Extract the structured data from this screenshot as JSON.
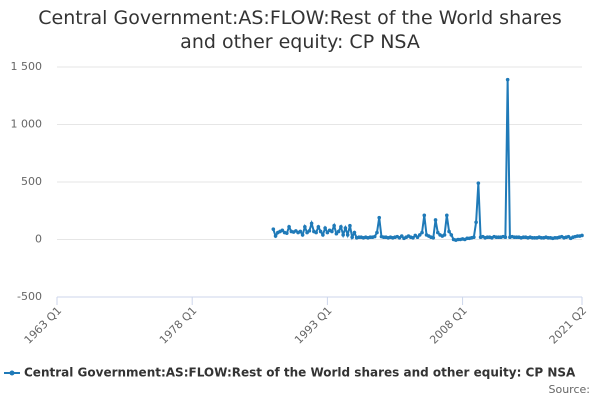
{
  "chart_data": {
    "type": "line",
    "title": "Central Government:AS:FLOW:Rest of the World shares and other equity: CP NSA",
    "source": "Source:",
    "xlim": [
      "1963 Q1",
      "2021 Q2"
    ],
    "xticks": [
      "1963 Q1",
      "1978 Q1",
      "1993 Q1",
      "2008 Q1",
      "2021 Q2"
    ],
    "ylim": [
      -500,
      1500
    ],
    "yticks": [
      -500,
      0,
      500,
      {
        "value": 1000,
        "label": "1 000"
      },
      {
        "value": 1500,
        "label": "1 500"
      }
    ],
    "grid": true,
    "x": [
      "1987 Q1",
      "1987 Q2",
      "1987 Q3",
      "1987 Q4",
      "1988 Q1",
      "1988 Q2",
      "1988 Q3",
      "1988 Q4",
      "1989 Q1",
      "1989 Q2",
      "1989 Q3",
      "1989 Q4",
      "1990 Q1",
      "1990 Q2",
      "1990 Q3",
      "1990 Q4",
      "1991 Q1",
      "1991 Q2",
      "1991 Q3",
      "1991 Q4",
      "1992 Q1",
      "1992 Q2",
      "1992 Q3",
      "1992 Q4",
      "1993 Q1",
      "1993 Q2",
      "1993 Q3",
      "1993 Q4",
      "1994 Q1",
      "1994 Q2",
      "1994 Q3",
      "1994 Q4",
      "1995 Q1",
      "1995 Q2",
      "1995 Q3",
      "1995 Q4",
      "1996 Q1",
      "1996 Q2",
      "1996 Q3",
      "1996 Q4",
      "1997 Q1",
      "1997 Q2",
      "1997 Q3",
      "1997 Q4",
      "1998 Q1",
      "1998 Q2",
      "1998 Q3",
      "1998 Q4",
      "1999 Q1",
      "1999 Q2",
      "1999 Q3",
      "1999 Q4",
      "2000 Q1",
      "2000 Q2",
      "2000 Q3",
      "2000 Q4",
      "2001 Q1",
      "2001 Q2",
      "2001 Q3",
      "2001 Q4",
      "2002 Q1",
      "2002 Q2",
      "2002 Q3",
      "2002 Q4",
      "2003 Q1",
      "2003 Q2",
      "2003 Q3",
      "2003 Q4",
      "2004 Q1",
      "2004 Q2",
      "2004 Q3",
      "2004 Q4",
      "2005 Q1",
      "2005 Q2",
      "2005 Q3",
      "2005 Q4",
      "2006 Q1",
      "2006 Q2",
      "2006 Q3",
      "2006 Q4",
      "2007 Q1",
      "2007 Q2",
      "2007 Q3",
      "2007 Q4",
      "2008 Q1",
      "2008 Q2",
      "2008 Q3",
      "2008 Q4",
      "2009 Q1",
      "2009 Q2",
      "2009 Q3",
      "2009 Q4",
      "2010 Q1",
      "2010 Q2",
      "2010 Q3",
      "2010 Q4",
      "2011 Q1",
      "2011 Q2",
      "2011 Q3",
      "2011 Q4",
      "2012 Q1",
      "2012 Q2",
      "2012 Q3",
      "2012 Q4",
      "2013 Q1",
      "2013 Q2",
      "2013 Q3",
      "2013 Q4",
      "2014 Q1",
      "2014 Q2",
      "2014 Q3",
      "2014 Q4",
      "2015 Q1",
      "2015 Q2",
      "2015 Q3",
      "2015 Q4",
      "2016 Q1",
      "2016 Q2",
      "2016 Q3",
      "2016 Q4",
      "2017 Q1",
      "2017 Q2",
      "2017 Q3",
      "2017 Q4",
      "2018 Q1",
      "2018 Q2",
      "2018 Q3",
      "2018 Q4",
      "2019 Q1",
      "2019 Q2",
      "2019 Q3",
      "2019 Q4",
      "2020 Q1",
      "2020 Q2",
      "2020 Q3",
      "2020 Q4",
      "2021 Q1",
      "2021 Q2"
    ],
    "series": [
      {
        "name": "Central Government:AS:FLOW:Rest of the World shares and other equity: CP NSA",
        "color": "#1f7ab8",
        "values": [
          90,
          30,
          60,
          70,
          80,
          60,
          55,
          110,
          70,
          65,
          75,
          60,
          70,
          40,
          110,
          60,
          75,
          140,
          70,
          60,
          110,
          70,
          40,
          100,
          60,
          80,
          70,
          120,
          50,
          70,
          110,
          40,
          100,
          40,
          120,
          20,
          60,
          15,
          20,
          20,
          15,
          20,
          15,
          20,
          20,
          25,
          60,
          190,
          25,
          20,
          20,
          15,
          20,
          15,
          20,
          25,
          15,
          30,
          10,
          20,
          30,
          20,
          15,
          35,
          20,
          40,
          60,
          210,
          40,
          30,
          20,
          15,
          170,
          60,
          40,
          30,
          40,
          210,
          70,
          40,
          0,
          -5,
          0,
          0,
          5,
          0,
          10,
          10,
          15,
          20,
          150,
          490,
          20,
          25,
          15,
          20,
          20,
          15,
          25,
          20,
          20,
          20,
          25,
          20,
          1390,
          20,
          25,
          20,
          20,
          20,
          15,
          20,
          20,
          15,
          20,
          15,
          15,
          15,
          20,
          15,
          15,
          20,
          15,
          15,
          10,
          15,
          15,
          20,
          25,
          15,
          20,
          25,
          10,
          20,
          25,
          30,
          30,
          35
        ]
      }
    ]
  }
}
